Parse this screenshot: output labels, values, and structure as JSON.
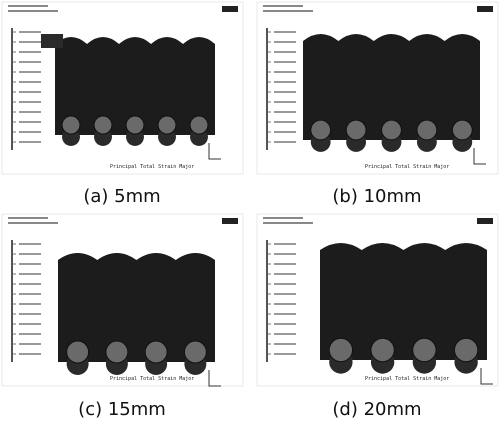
{
  "panels": [
    {
      "caption": "(a) 5mm",
      "label": "Principal Total Strain Major"
    },
    {
      "caption": "(b) 10mm",
      "label": "Principal Total Strain Major"
    },
    {
      "caption": "(c) 15mm",
      "label": "Principal Total Strain Major"
    },
    {
      "caption": "(d) 20mm",
      "label": "Principal Total Strain Major"
    }
  ]
}
